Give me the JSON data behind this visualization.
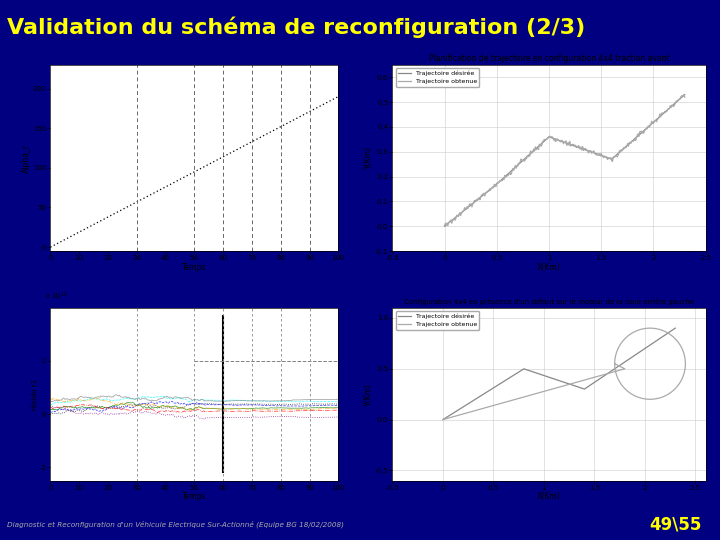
{
  "title": "Validation du schéma de reconfiguration (2/3)",
  "title_color": "#FFFF00",
  "title_bg": "#000080",
  "footer_text": "Diagnostic et Reconfiguration d'un Véhicule Electrique Sur-Actionné (Equipe BG 18/02/2008)",
  "footer_page": "49\\55",
  "footer_bg": "#000080",
  "footer_text_color": "#AAAAAA",
  "slide_bg": "#000080",
  "gold_line_color": "#C8A000",
  "plot1_ylabel": "Alpha_r",
  "plot1_xlabel": "Temps",
  "plot1_yticks": [
    0,
    50,
    100,
    150,
    200
  ],
  "plot1_xticks": [
    0,
    10,
    20,
    30,
    40,
    50,
    60,
    70,
    80,
    90,
    100
  ],
  "plot1_vlines": [
    30,
    50,
    60,
    70,
    80,
    90
  ],
  "plot2_ylabel": "résidu r1",
  "plot2_xlabel": "Temps",
  "plot2_yticks": [
    -2,
    0,
    2
  ],
  "plot2_xticks": [
    0,
    10,
    20,
    30,
    40,
    50,
    60,
    70,
    80,
    90,
    100
  ],
  "plot2_vlines": [
    30,
    50,
    60,
    70,
    80,
    90
  ],
  "plot3_title": "Planification de trajectoire en configuration 4x4 traction avant",
  "plot3_xlabel": "X(Km)",
  "plot3_ylabel": "Y(Km)",
  "plot3_yticks": [
    -0.1,
    0,
    0.1,
    0.2,
    0.3,
    0.4,
    0.5,
    0.6
  ],
  "plot3_xticks": [
    -0.5,
    0,
    0.5,
    1,
    1.5,
    2,
    2.5
  ],
  "plot3_legend": [
    "Trajectoire désirée",
    "Trajectoire obtenue"
  ],
  "plot4_title": "Configuration 4x4 en présence d'un défaut sur le moteur de la roue arrière gauche",
  "plot4_xlabel": "X(Km)",
  "plot4_ylabel": "Y(Km)",
  "plot4_yticks": [
    -0.5,
    0,
    0.5,
    1
  ],
  "plot4_xticks": [
    -0.5,
    0,
    0.5,
    1,
    1.5,
    2,
    2.5
  ],
  "plot4_legend": [
    "Trajectoire désirée",
    "Trajectoire obtenue"
  ]
}
